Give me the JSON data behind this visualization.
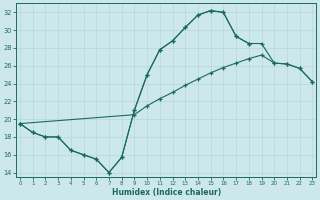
{
  "xlabel": "Humidex (Indice chaleur)",
  "xlim": [
    -0.3,
    23.3
  ],
  "ylim": [
    13.5,
    33.0
  ],
  "yticks": [
    14,
    16,
    18,
    20,
    22,
    24,
    26,
    28,
    30,
    32
  ],
  "xticks": [
    0,
    1,
    2,
    3,
    4,
    5,
    6,
    7,
    8,
    9,
    10,
    11,
    12,
    13,
    14,
    15,
    16,
    17,
    18,
    19,
    20,
    21,
    22,
    23
  ],
  "bg_color": "#cde8ec",
  "line_color": "#1a6b5a",
  "grid_color": "#b8d8dc",
  "line1_x": [
    0,
    1,
    2,
    3,
    4,
    5,
    6,
    7,
    8,
    9,
    10,
    11,
    12,
    13,
    14,
    15,
    16,
    17,
    18
  ],
  "line1_y": [
    19.5,
    18.5,
    18.0,
    18.0,
    16.5,
    16.0,
    15.5,
    14.0,
    15.7,
    21.0,
    25.0,
    27.8,
    28.8,
    30.3,
    31.7,
    32.2,
    32.0,
    29.3,
    28.5
  ],
  "line2_x": [
    0,
    1,
    2,
    3,
    4,
    5,
    6,
    7,
    8,
    9,
    10,
    11,
    12,
    13,
    14,
    15,
    16,
    17,
    18,
    19,
    20,
    21,
    22,
    23
  ],
  "line2_y": [
    19.5,
    18.5,
    18.0,
    18.0,
    16.5,
    16.0,
    15.5,
    14.0,
    15.7,
    21.0,
    25.0,
    27.8,
    28.8,
    30.3,
    31.7,
    32.2,
    32.0,
    29.3,
    28.5,
    28.5,
    26.3,
    26.2,
    25.7,
    24.2
  ],
  "line3_x": [
    0,
    9,
    10,
    11,
    12,
    13,
    14,
    15,
    16,
    17,
    18,
    19,
    20,
    21,
    22,
    23
  ],
  "line3_y": [
    19.5,
    20.5,
    21.5,
    22.3,
    23.0,
    23.8,
    24.5,
    25.2,
    25.8,
    26.3,
    26.8,
    27.2,
    26.3,
    26.2,
    25.7,
    24.2
  ]
}
